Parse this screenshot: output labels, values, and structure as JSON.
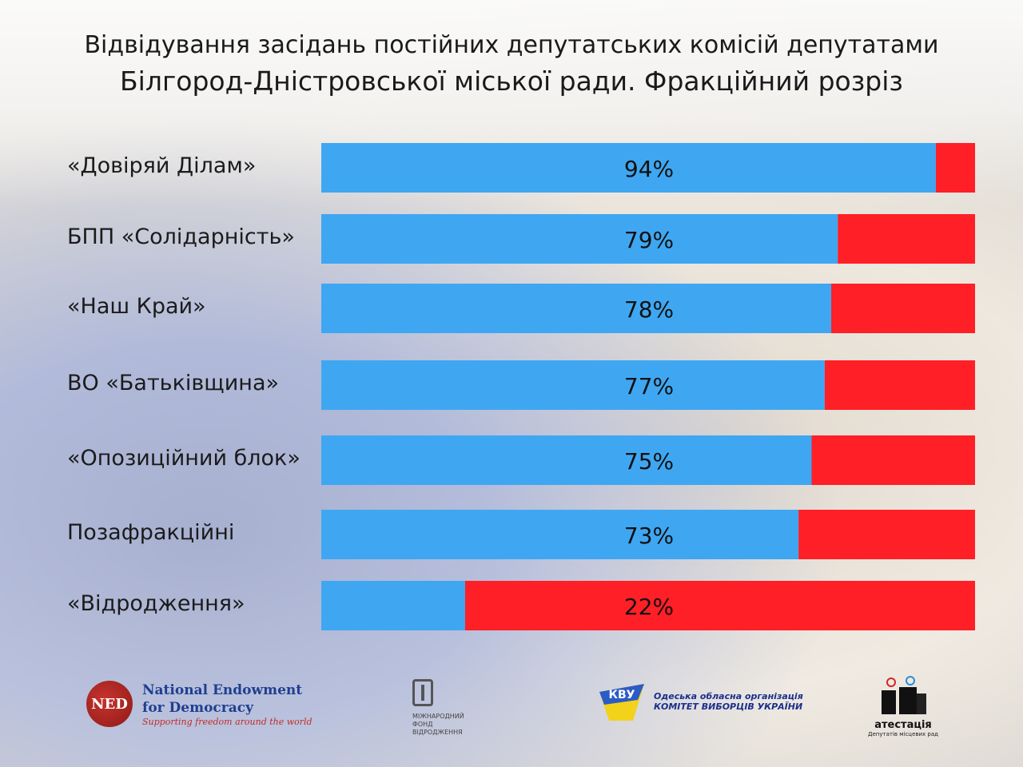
{
  "chart_data": {
    "type": "bar",
    "orientation": "horizontal",
    "stacked": true,
    "title": "Відвідування засідань постійних депутатських комісій депутатами Білгород-Дністровської міської ради. Фракційний розріз",
    "title_lines": [
      "Відвідування засідань постійних депутатських комісій депутатами",
      "Білгород-Дністровської міської ради. Фракційний розріз"
    ],
    "categories": [
      "«Довіряй Ділам»",
      "БПП «Солідарність»",
      "«Наш Край»",
      "ВО «Батьківщина»",
      "«Опозиційний блок»",
      "Позафракційні",
      "«Відродження»"
    ],
    "values": [
      94,
      79,
      78,
      77,
      75,
      73,
      22
    ],
    "value_labels": [
      "94%",
      "79%",
      "78%",
      "77%",
      "75%",
      "73%",
      "22%"
    ],
    "xlim": [
      0,
      100
    ],
    "grid": false,
    "colors": {
      "attended": "#3fa7f2",
      "missed": "#ff1f26"
    }
  },
  "logos": {
    "ned": {
      "mark": "NED",
      "line1": "National Endowment",
      "line2": "for Democracy",
      "tagline": "Supporting freedom around the world"
    },
    "irf": {
      "line1": "МІЖНАРОДНИЙ",
      "line2": "ФОНД",
      "line3": "ВІДРОДЖЕННЯ"
    },
    "cvu": {
      "mark": "КВУ",
      "line1": "Одеська обласна організація",
      "line2": "КОМІТЕТ ВИБОРЦІВ УКРАЇНИ"
    },
    "attestation": {
      "name": "атестація",
      "sub": "Депутатів місцевих рад"
    }
  }
}
